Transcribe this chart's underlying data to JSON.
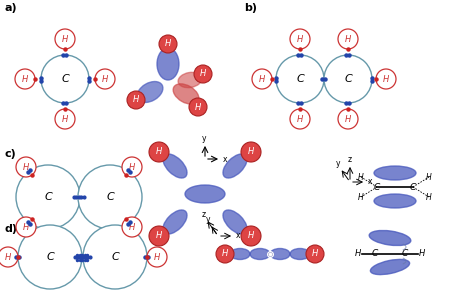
{
  "bg_color": "#ffffff",
  "blue_orbital": "#4455bb",
  "blue_orbital_alpha": 0.75,
  "red_H_edge": "#cc3333",
  "red_H_face": "#dd4444",
  "blue_dot": "#2244aa",
  "red_dot": "#cc2222",
  "C_edge": "#6699aa",
  "C_face": "#ffffff",
  "axis_color": "#000000",
  "panels": {
    "a_label": "a)",
    "b_label": "b)",
    "c_label": "c)",
    "d_label": "d)"
  }
}
